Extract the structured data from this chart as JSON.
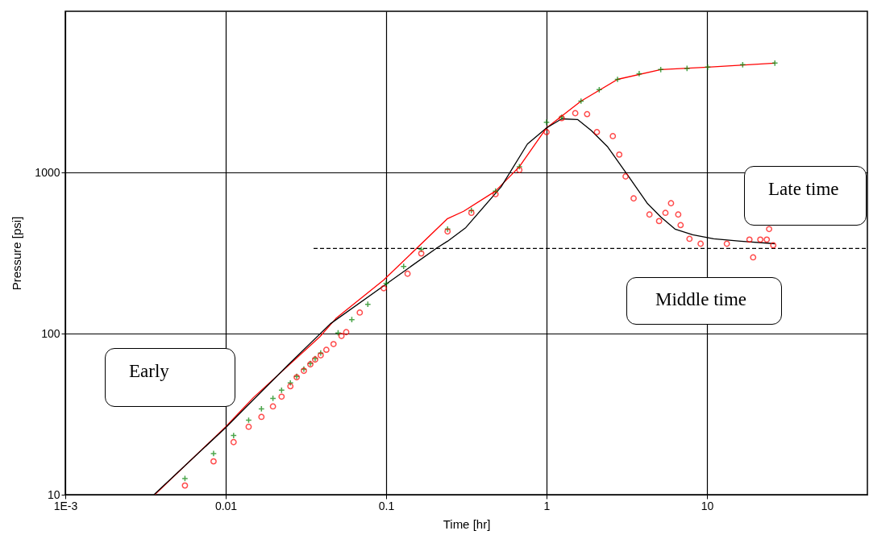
{
  "chart_data": {
    "type": "scatter",
    "xlabel": "Time [hr]",
    "ylabel": "Pressure [psi]",
    "log": "xy",
    "grid": true,
    "xlim": [
      0.001,
      100
    ],
    "ylim": [
      10,
      10000
    ],
    "xticks": [
      {
        "value": 0.001,
        "label": "1E-3"
      },
      0.01,
      0.1,
      1,
      10
    ],
    "yticks": [
      10,
      100,
      1000
    ],
    "annotations": [
      "Early",
      "Middle time",
      "Late time"
    ],
    "series": [
      {
        "type": "line",
        "color": "#ff0000",
        "line_style": "solid",
        "x": [
          0.00361,
          0.01,
          0.0149,
          0.0386,
          0.0486,
          0.0966,
          0.2415,
          0.304,
          0.481,
          0.677,
          1,
          1.64,
          2.77,
          5.15,
          10.1,
          26.5
        ],
        "values": [
          10,
          26.4,
          40.1,
          95.5,
          124,
          215,
          517,
          574,
          766,
          1085,
          1890,
          2770,
          3780,
          4350,
          4500,
          4770
        ]
      },
      {
        "type": "line",
        "color": "#000000",
        "line_style": "solid",
        "x": [
          0.00357,
          0.01,
          0.0244,
          0.0449,
          0.0966,
          0.208,
          0.2415,
          0.314,
          0.52,
          0.76,
          1,
          1.243,
          1.56,
          1.9,
          2.39,
          3.25,
          4.24,
          5.15,
          6.32,
          8.14,
          11,
          16.2,
          26.5
        ],
        "values": [
          10,
          26.1,
          63.7,
          115,
          198,
          341,
          374,
          455,
          812,
          1500,
          1890,
          2150,
          2130,
          1820,
          1450,
          944,
          644,
          529,
          445,
          410,
          387,
          374,
          361
        ]
      },
      {
        "type": "line",
        "color": "#000000",
        "line_style": "dashed",
        "x": [
          0.0353,
          100
        ],
        "values": [
          337,
          337
        ]
      },
      {
        "marker": "cross",
        "color": "#008000",
        "x": [
          0.00557,
          0.0084,
          0.0112,
          0.0139,
          0.0167,
          0.0197,
          0.0223,
          0.0253,
          0.0277,
          0.0307,
          0.0337,
          0.0361,
          0.0391,
          0.0502,
          0.0611,
          0.0769,
          0.1,
          0.1286,
          0.1656,
          0.2415,
          0.34,
          0.481,
          0.677,
          1,
          1.243,
          1.64,
          2.13,
          2.77,
          3.78,
          5.15,
          7.51,
          10.1,
          16.7,
          26.5
        ],
        "values": [
          12.6,
          18,
          23.3,
          29,
          34.1,
          39.6,
          44.5,
          49.4,
          54.2,
          60.1,
          65.2,
          69.9,
          75.7,
          101,
          122,
          152,
          205,
          261,
          333,
          445,
          581,
          766,
          1085,
          2050,
          2200,
          2770,
          3260,
          3780,
          4100,
          4350,
          4420,
          4500,
          4660,
          4770
        ]
      },
      {
        "marker": "circle",
        "color": "#ff0000",
        "x": [
          0.00557,
          0.0084,
          0.0112,
          0.0139,
          0.0167,
          0.0197,
          0.0223,
          0.0253,
          0.0277,
          0.0307,
          0.0337,
          0.0361,
          0.0391,
          0.0424,
          0.047,
          0.0527,
          0.0564,
          0.0685,
          0.0966,
          0.136,
          0.1656,
          0.2415,
          0.34,
          0.481,
          0.677,
          1,
          1.243,
          1.51,
          1.79,
          2.06,
          2.59,
          2.84,
          3.11,
          3.49,
          4.38,
          5.03,
          5.51,
          5.97,
          6.62,
          6.85,
          7.78,
          9.13,
          13.3,
          18.4,
          19.4,
          21.5,
          23.6,
          24.4,
          25.9
        ],
        "values": [
          11.4,
          16.1,
          21.2,
          26.4,
          30.4,
          35.3,
          40.6,
          47.1,
          53.5,
          58.7,
          64.4,
          69,
          73.2,
          79.3,
          86,
          96.6,
          102,
          135,
          191,
          235,
          314,
          430,
          561,
          732,
          1035,
          1780,
          2170,
          2330,
          2300,
          1780,
          1680,
          1290,
          944,
          690,
          548,
          499,
          561,
          644,
          548,
          471,
          387,
          361,
          361,
          383,
          297,
          383,
          383,
          445,
          353
        ]
      }
    ]
  }
}
